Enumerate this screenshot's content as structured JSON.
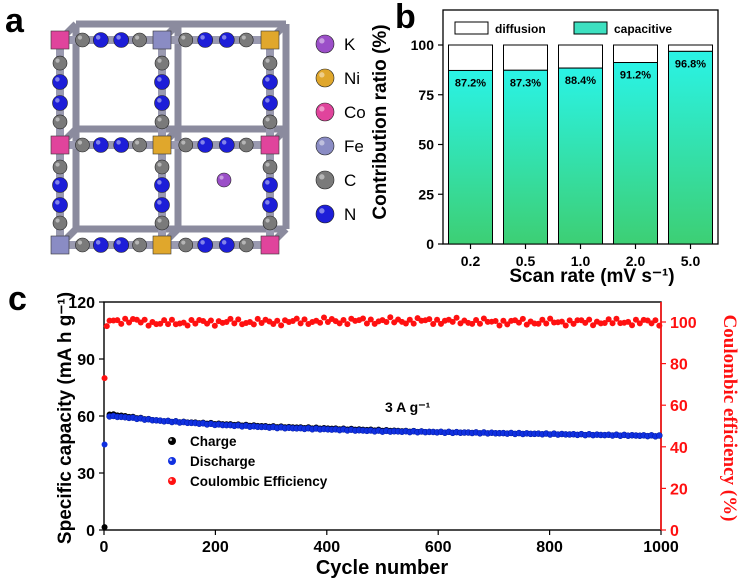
{
  "panels": {
    "a": {
      "letter": "a"
    },
    "b": {
      "letter": "b"
    },
    "c": {
      "letter": "c"
    }
  },
  "structure_legend": [
    {
      "label": "K",
      "color": "#9b4fc8"
    },
    {
      "label": "Ni",
      "color": "#e0a72c"
    },
    {
      "label": "Co",
      "color": "#e0449c"
    },
    {
      "label": "Fe",
      "color": "#8a8cc4"
    },
    {
      "label": "C",
      "color": "#7a7a7a"
    },
    {
      "label": "N",
      "color": "#1d1ed8"
    }
  ],
  "chart_data": [
    {
      "type": "bar",
      "xlabel": "Scan rate (mV s⁻¹)",
      "ylabel": "Contribution ratio (%)",
      "ylim": [
        0,
        100
      ],
      "yticks": [
        "0",
        "25",
        "50",
        "75",
        "100"
      ],
      "categories": [
        "0.2",
        "0.5",
        "1.0",
        "2.0",
        "5.0"
      ],
      "series": [
        {
          "name": "capacitive",
          "values": [
            87.2,
            87.3,
            88.4,
            91.2,
            96.8
          ],
          "color": "#3de0c0"
        },
        {
          "name": "diffusion",
          "values": [
            12.8,
            12.7,
            11.6,
            8.8,
            3.2
          ],
          "color": "#ffffff"
        }
      ],
      "data_labels": [
        "87.2%",
        "87.3%",
        "88.4%",
        "91.2%",
        "96.8%"
      ],
      "legend": {
        "placement": "top",
        "items": [
          "diffusion",
          "capacitive"
        ]
      }
    },
    {
      "type": "scatter",
      "xlabel": "Cycle number",
      "ylabel": "Specific capacity (mA h g⁻¹)",
      "ylabel_right": "Coulombic efficiency (%)",
      "xlim": [
        0,
        1000
      ],
      "ylim": [
        0,
        120
      ],
      "ylim_right": [
        0,
        100
      ],
      "xticks": [
        "0",
        "200",
        "400",
        "600",
        "800",
        "1000"
      ],
      "yticks": [
        "0",
        "30",
        "60",
        "90",
        "120"
      ],
      "yticks_right": [
        "0",
        "20",
        "40",
        "60",
        "80",
        "100"
      ],
      "annotation": "3 A g⁻¹",
      "legend": {
        "placement": "lower-left",
        "items": [
          "Charge",
          "Discharge",
          "Coulombic Efficiency"
        ]
      },
      "series": [
        {
          "name": "Charge",
          "axis": "left",
          "color": "#000000",
          "points": [
            [
              1,
              1.5
            ],
            [
              10,
              61
            ],
            [
              50,
              59.5
            ],
            [
              100,
              57.5
            ],
            [
              200,
              56
            ],
            [
              300,
              54.5
            ],
            [
              400,
              53.5
            ],
            [
              500,
              52.5
            ],
            [
              600,
              51.5
            ],
            [
              700,
              51
            ],
            [
              800,
              50.5
            ],
            [
              900,
              50
            ],
            [
              1000,
              49.5
            ]
          ]
        },
        {
          "name": "Discharge",
          "axis": "left",
          "color": "#1030e0",
          "points": [
            [
              1,
              45
            ],
            [
              10,
              60
            ],
            [
              50,
              59
            ],
            [
              100,
              57.5
            ],
            [
              200,
              55.5
            ],
            [
              300,
              54
            ],
            [
              400,
              53
            ],
            [
              500,
              52
            ],
            [
              600,
              51.5
            ],
            [
              700,
              51
            ],
            [
              800,
              50.5
            ],
            [
              900,
              50
            ],
            [
              1000,
              49.5
            ]
          ]
        },
        {
          "name": "Coulombic Efficiency",
          "axis": "right",
          "color": "#ff1010",
          "points": [
            [
              1,
              73
            ],
            [
              5,
              98
            ],
            [
              10,
              101
            ],
            [
              50,
              100.5
            ],
            [
              100,
              99.5
            ],
            [
              200,
              100
            ],
            [
              300,
              100
            ],
            [
              400,
              100.5
            ],
            [
              500,
              100.5
            ],
            [
              600,
              100.5
            ],
            [
              700,
              100
            ],
            [
              800,
              100
            ],
            [
              900,
              100
            ],
            [
              1000,
              100
            ]
          ]
        }
      ]
    }
  ]
}
